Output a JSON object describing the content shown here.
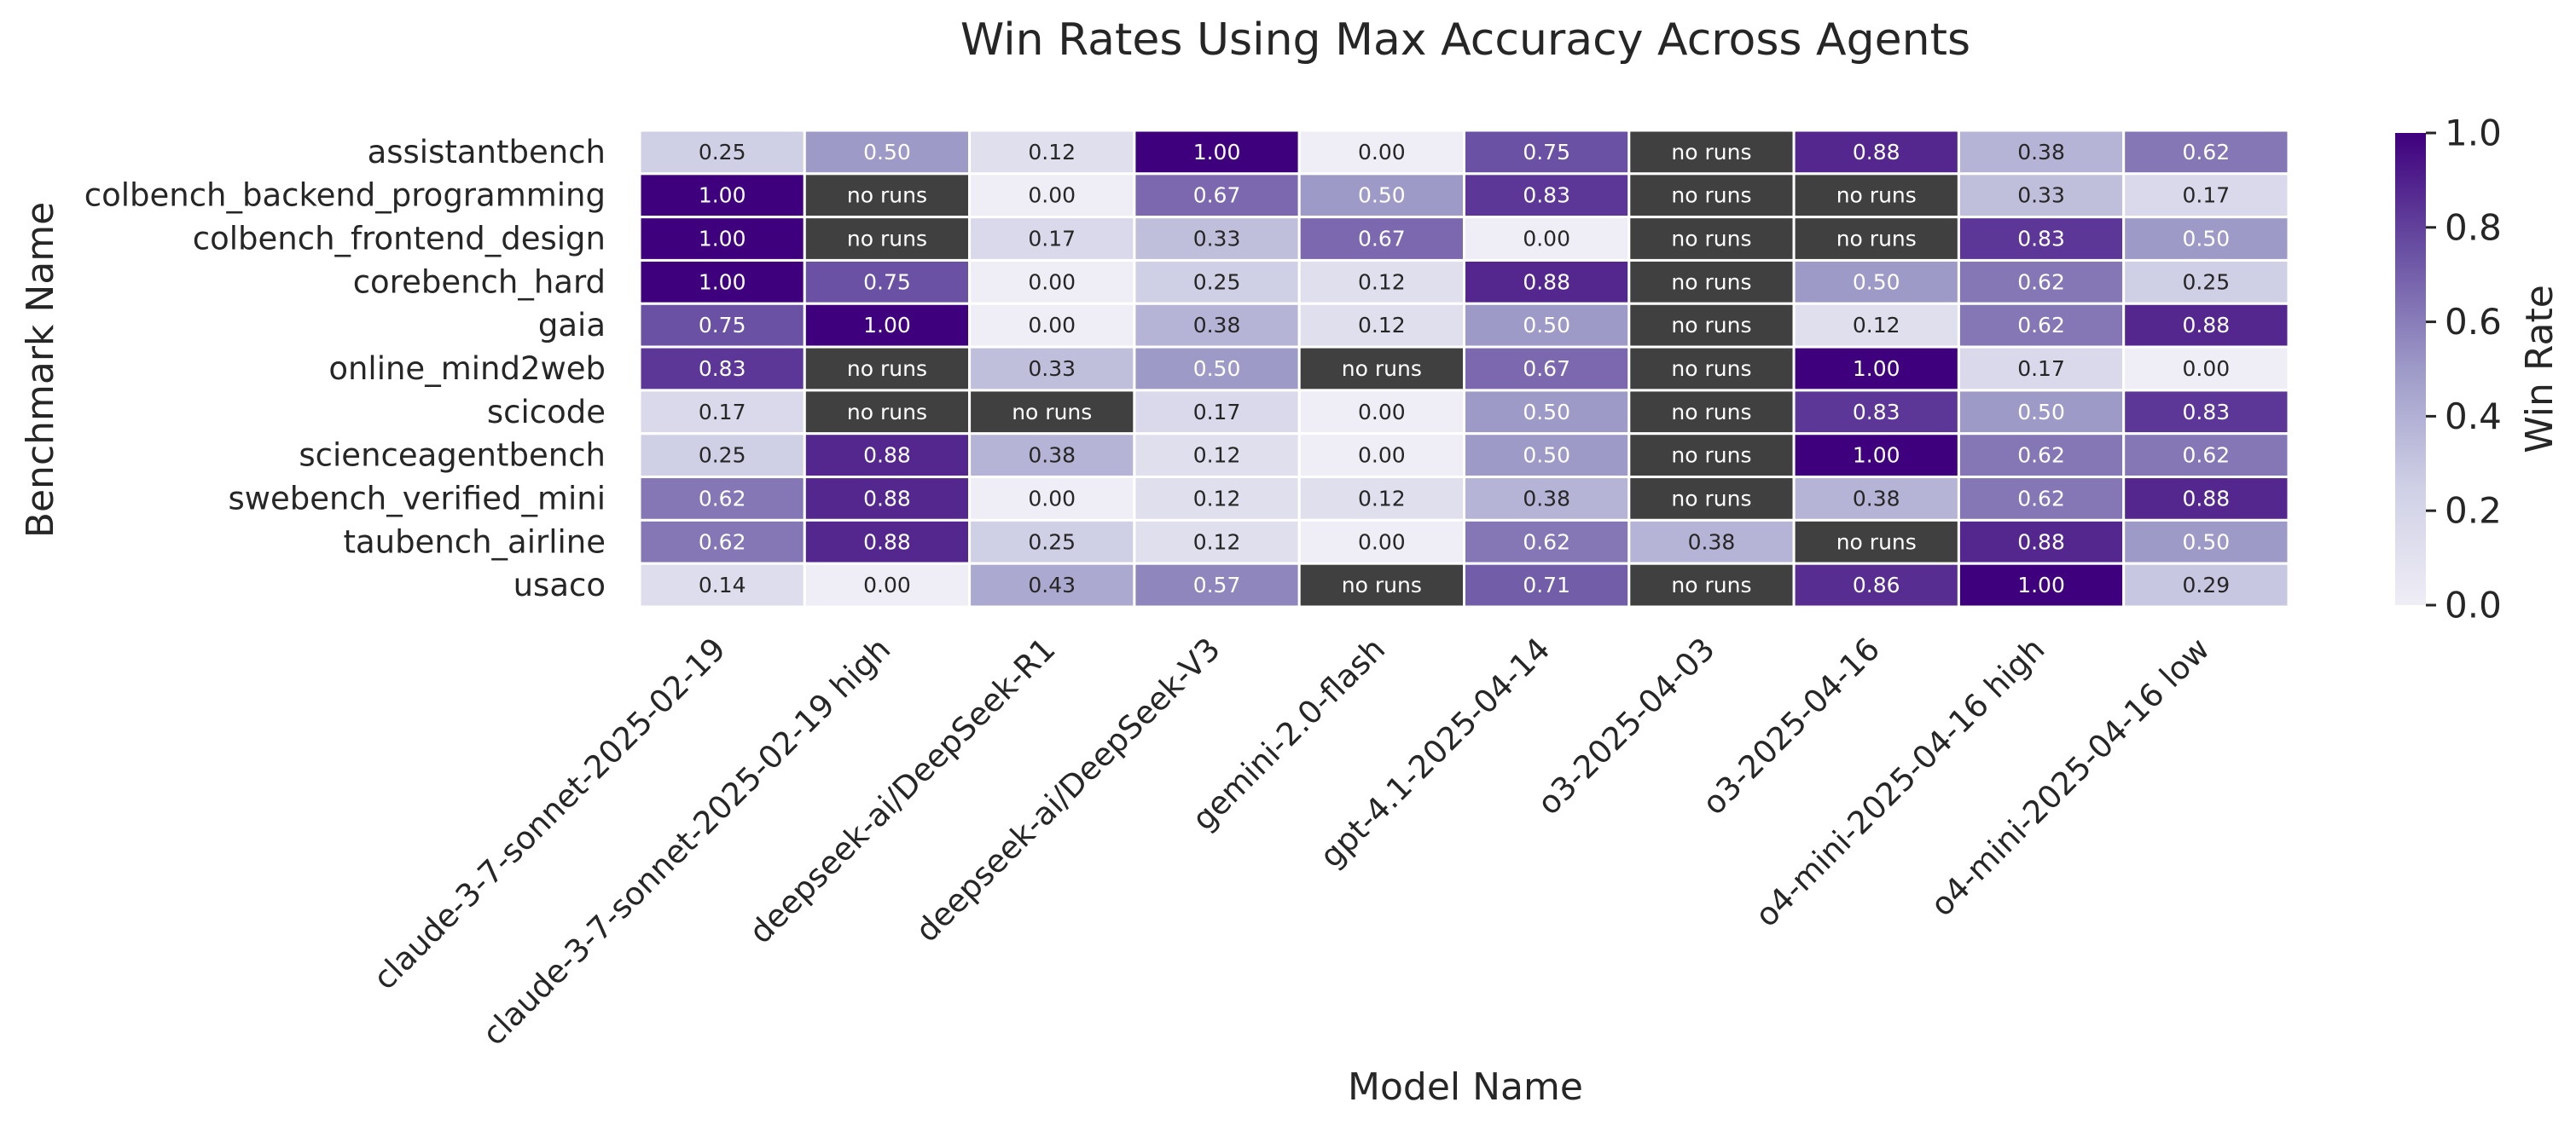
{
  "chart_data": {
    "type": "heatmap",
    "title": "Win Rates Using Max Accuracy Across Agents",
    "xlabel": "Model Name",
    "ylabel": "Benchmark Name",
    "colorbar_label": "Win Rate",
    "colorbar_ticks": [
      "0.0",
      "0.2",
      "0.4",
      "0.6",
      "0.8",
      "1.0"
    ],
    "value_range": [
      0,
      1
    ],
    "missing_label": "no runs",
    "colors": {
      "low": "#e6e4f0",
      "high": "#3f007d",
      "missing": "#404040",
      "grid": "#ffffff"
    },
    "columns": [
      "claude-3-7-sonnet-2025-02-19",
      "claude-3-7-sonnet-2025-02-19 high",
      "deepseek-ai/DeepSeek-R1",
      "deepseek-ai/DeepSeek-V3",
      "gemini-2.0-flash",
      "gpt-4.1-2025-04-14",
      "o3-2025-04-03",
      "o3-2025-04-16",
      "o4-mini-2025-04-16 high",
      "o4-mini-2025-04-16 low"
    ],
    "rows": [
      "assistantbench",
      "colbench_backend_programming",
      "colbench_frontend_design",
      "corebench_hard",
      "gaia",
      "online_mind2web",
      "scicode",
      "scienceagentbench",
      "swebench_verified_mini",
      "taubench_airline",
      "usaco"
    ],
    "values": [
      [
        0.25,
        0.5,
        0.12,
        1.0,
        0.0,
        0.75,
        null,
        0.88,
        0.38,
        0.62
      ],
      [
        1.0,
        null,
        0.0,
        0.67,
        0.5,
        0.83,
        null,
        null,
        0.33,
        0.17
      ],
      [
        1.0,
        null,
        0.17,
        0.33,
        0.67,
        0.0,
        null,
        null,
        0.83,
        0.5
      ],
      [
        1.0,
        0.75,
        0.0,
        0.25,
        0.12,
        0.88,
        null,
        0.5,
        0.62,
        0.25
      ],
      [
        0.75,
        1.0,
        0.0,
        0.38,
        0.12,
        0.5,
        null,
        0.12,
        0.62,
        0.88
      ],
      [
        0.83,
        null,
        0.33,
        0.5,
        null,
        0.67,
        null,
        1.0,
        0.17,
        0.0
      ],
      [
        0.17,
        null,
        null,
        0.17,
        0.0,
        0.5,
        null,
        0.83,
        0.5,
        0.83
      ],
      [
        0.25,
        0.88,
        0.38,
        0.12,
        0.0,
        0.5,
        null,
        1.0,
        0.62,
        0.62
      ],
      [
        0.62,
        0.88,
        0.0,
        0.12,
        0.12,
        0.38,
        null,
        0.38,
        0.62,
        0.88
      ],
      [
        0.62,
        0.88,
        0.25,
        0.12,
        0.0,
        0.62,
        0.38,
        null,
        0.88,
        0.5
      ],
      [
        0.14,
        0.0,
        0.43,
        0.57,
        null,
        0.71,
        null,
        0.86,
        1.0,
        0.29
      ]
    ]
  }
}
